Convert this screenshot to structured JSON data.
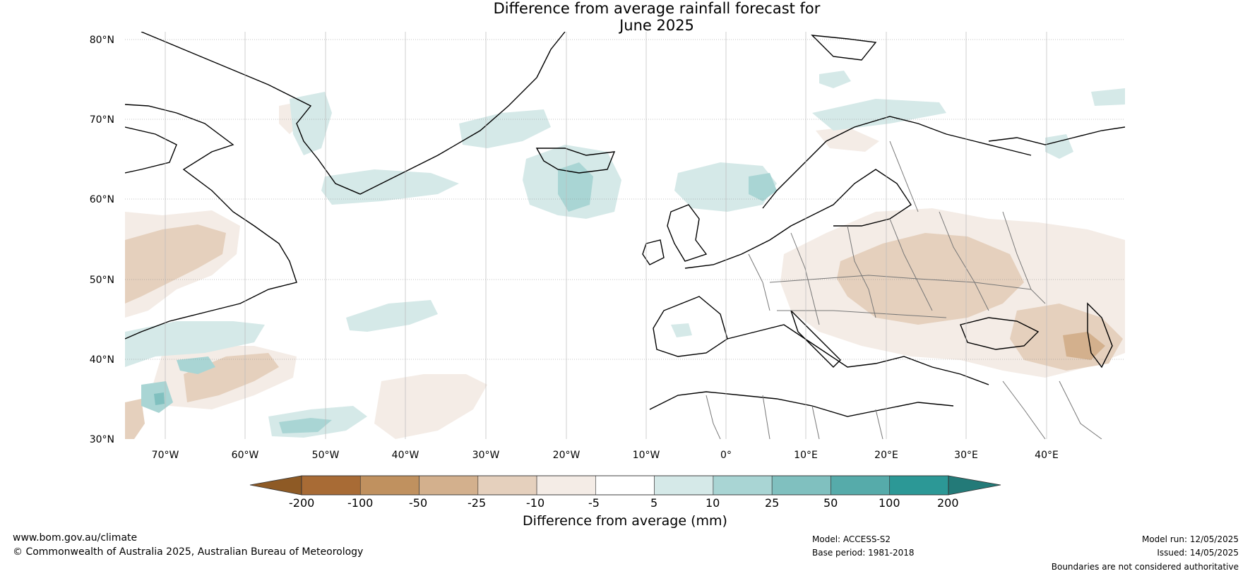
{
  "title": {
    "line1": "Difference from average rainfall forecast for",
    "line2": "June 2025"
  },
  "map": {
    "lat_labels": [
      "80°N",
      "70°N",
      "60°N",
      "50°N",
      "40°N",
      "30°N"
    ],
    "lon_labels": [
      "70°W",
      "60°W",
      "50°W",
      "40°W",
      "30°W",
      "20°W",
      "10°W",
      "0°",
      "10°E",
      "20°E",
      "30°E",
      "40°E"
    ]
  },
  "colorbar": {
    "tick_labels": [
      "-200",
      "-100",
      "-50",
      "-25",
      "-10",
      "-5",
      "5",
      "10",
      "25",
      "50",
      "100",
      "200"
    ],
    "colors": [
      "#a86b35",
      "#c0915f",
      "#d3b08d",
      "#e5d0bd",
      "#f4ece6",
      "#ffffff",
      "#d5e9e8",
      "#a9d5d4",
      "#80c0bf",
      "#56abaa",
      "#2c9896"
    ],
    "under_color": "#8e5a25",
    "over_color": "#237a78",
    "title": "Difference from average (mm)"
  },
  "footer": {
    "url": "www.bom.gov.au/climate",
    "copyright": "© Commonwealth of Australia 2025, Australian Bureau of Meteorology",
    "model": "Model: ACCESS-S2",
    "base_period": "Base period: 1981-2018",
    "model_run": "Model run: 12/05/2025",
    "issued": "Issued: 14/05/2025",
    "disclaimer": "Boundaries are not considered authoritative"
  }
}
